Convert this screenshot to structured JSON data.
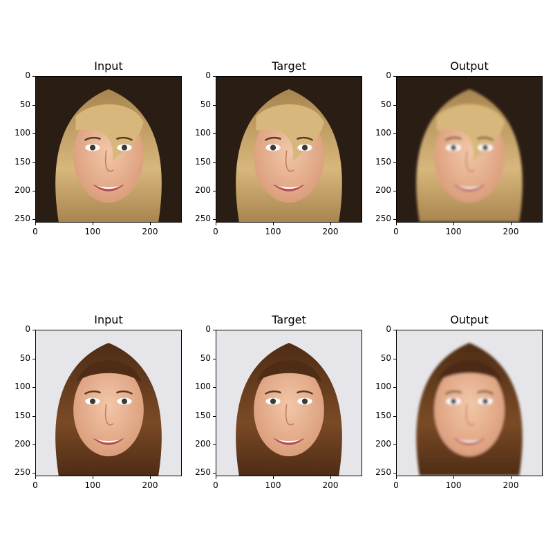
{
  "figure": {
    "rows": [
      {
        "panels": [
          {
            "title": "Input",
            "variant": "blonde-sharp"
          },
          {
            "title": "Target",
            "variant": "blonde-sharp"
          },
          {
            "title": "Output",
            "variant": "blonde-smooth"
          }
        ]
      },
      {
        "panels": [
          {
            "title": "Input",
            "variant": "brunette-sharp"
          },
          {
            "title": "Target",
            "variant": "brunette-sharp"
          },
          {
            "title": "Output",
            "variant": "brunette-smooth"
          }
        ]
      }
    ],
    "y_ticks": [
      "0",
      "50",
      "100",
      "150",
      "200",
      "250"
    ],
    "x_ticks": [
      "0",
      "100",
      "200"
    ],
    "image_size": 256
  },
  "colors": {
    "blonde_hair": "#d8b77c",
    "blonde_bg": "#2a1d14",
    "brunette_hair": "#7a4a26",
    "brunette_bg": "#e6e6ea",
    "skin": "#e8b796"
  }
}
